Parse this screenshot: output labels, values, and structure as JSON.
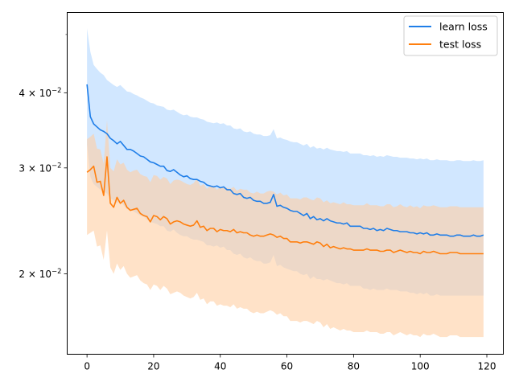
{
  "chart_data": {
    "type": "line",
    "title": "",
    "xlabel": "",
    "ylabel": "",
    "yscale": "log",
    "xlim": [
      -5.95,
      124.95
    ],
    "ylim": [
      0.0147,
      0.0544
    ],
    "grid": false,
    "legend_position": "top-right",
    "x_ticks": [
      0,
      20,
      40,
      60,
      80,
      100,
      120
    ],
    "x_tick_labels": [
      "0",
      "20",
      "40",
      "60",
      "80",
      "100",
      "120"
    ],
    "y_ticks": [
      0.02,
      0.03,
      0.04
    ],
    "y_tick_labels": [
      {
        "mantissa": "2",
        "base": "10",
        "exp": "−2"
      },
      {
        "mantissa": "3",
        "base": "10",
        "exp": "−2"
      },
      {
        "mantissa": "4",
        "base": "10",
        "exp": "−2"
      }
    ],
    "y_minor_ticks": [
      0.05
    ],
    "x_start": 0,
    "x_step": 1,
    "series": [
      {
        "name": "learn loss",
        "color": "#1f7ee8",
        "band_color": "#b3d7ff",
        "mean": [
          0.0413,
          0.0365,
          0.0355,
          0.0351,
          0.0347,
          0.0345,
          0.0342,
          0.0336,
          0.0333,
          0.0329,
          0.0332,
          0.0327,
          0.0322,
          0.0322,
          0.032,
          0.0317,
          0.0314,
          0.0313,
          0.031,
          0.0307,
          0.0306,
          0.0304,
          0.0302,
          0.0302,
          0.0297,
          0.0296,
          0.0298,
          0.0295,
          0.0292,
          0.029,
          0.0291,
          0.0288,
          0.0287,
          0.0287,
          0.0285,
          0.0284,
          0.0281,
          0.028,
          0.0279,
          0.028,
          0.0278,
          0.0279,
          0.0276,
          0.0276,
          0.0272,
          0.0271,
          0.0272,
          0.0268,
          0.0267,
          0.0268,
          0.0265,
          0.0264,
          0.0264,
          0.0262,
          0.0262,
          0.0263,
          0.0271,
          0.0259,
          0.026,
          0.0258,
          0.0257,
          0.0255,
          0.0254,
          0.0254,
          0.0252,
          0.025,
          0.0252,
          0.0247,
          0.0249,
          0.0246,
          0.0247,
          0.0245,
          0.0247,
          0.0245,
          0.0244,
          0.0243,
          0.0243,
          0.0242,
          0.0243,
          0.024,
          0.024,
          0.024,
          0.024,
          0.0238,
          0.0238,
          0.0237,
          0.0238,
          0.0236,
          0.0237,
          0.0236,
          0.0238,
          0.0237,
          0.0236,
          0.0236,
          0.0235,
          0.0235,
          0.0235,
          0.0234,
          0.0234,
          0.0233,
          0.0234,
          0.0233,
          0.0234,
          0.0232,
          0.0232,
          0.0233,
          0.0232,
          0.0232,
          0.0232,
          0.0231,
          0.0231,
          0.0232,
          0.0232,
          0.0231,
          0.0231,
          0.0231,
          0.0232,
          0.0231,
          0.0231,
          0.0232
        ],
        "upper": [
          0.0512,
          0.0468,
          0.0445,
          0.0438,
          0.0432,
          0.0428,
          0.042,
          0.0416,
          0.0412,
          0.0409,
          0.0412,
          0.0407,
          0.0402,
          0.0401,
          0.0398,
          0.0396,
          0.0393,
          0.0391,
          0.0388,
          0.0385,
          0.0384,
          0.0381,
          0.038,
          0.0379,
          0.0375,
          0.0374,
          0.0375,
          0.0372,
          0.0369,
          0.0367,
          0.0368,
          0.0365,
          0.0364,
          0.0364,
          0.0362,
          0.0361,
          0.0358,
          0.0357,
          0.0356,
          0.0357,
          0.0355,
          0.0356,
          0.0353,
          0.0353,
          0.0349,
          0.0348,
          0.0349,
          0.0345,
          0.0344,
          0.0345,
          0.0342,
          0.0341,
          0.0341,
          0.0339,
          0.0339,
          0.034,
          0.0348,
          0.0336,
          0.0337,
          0.0335,
          0.0334,
          0.0332,
          0.0331,
          0.0331,
          0.0329,
          0.0327,
          0.0329,
          0.0324,
          0.0326,
          0.0323,
          0.0324,
          0.0322,
          0.0324,
          0.0322,
          0.0321,
          0.032,
          0.032,
          0.0319,
          0.032,
          0.0317,
          0.0317,
          0.0317,
          0.0317,
          0.0315,
          0.0315,
          0.0314,
          0.0315,
          0.0313,
          0.0314,
          0.0313,
          0.0315,
          0.0314,
          0.0313,
          0.0313,
          0.0312,
          0.0312,
          0.0312,
          0.0311,
          0.0311,
          0.031,
          0.0311,
          0.031,
          0.0311,
          0.0309,
          0.0309,
          0.031,
          0.0309,
          0.0309,
          0.0309,
          0.0308,
          0.0308,
          0.0309,
          0.0309,
          0.0308,
          0.0308,
          0.0308,
          0.0309,
          0.0308,
          0.0308,
          0.0309
        ],
        "lower": [
          0.0328,
          0.029,
          0.0282,
          0.0279,
          0.0276,
          0.0274,
          0.0272,
          0.0267,
          0.0265,
          0.0262,
          0.0264,
          0.026,
          0.0256,
          0.0256,
          0.0254,
          0.0252,
          0.025,
          0.0249,
          0.0246,
          0.0244,
          0.0243,
          0.0242,
          0.024,
          0.024,
          0.0236,
          0.0235,
          0.0237,
          0.0234,
          0.0232,
          0.0231,
          0.0231,
          0.0229,
          0.0228,
          0.0228,
          0.0227,
          0.0226,
          0.0223,
          0.0223,
          0.0222,
          0.0223,
          0.0221,
          0.0222,
          0.0219,
          0.0219,
          0.0216,
          0.0215,
          0.0216,
          0.0213,
          0.0212,
          0.0213,
          0.0211,
          0.021,
          0.021,
          0.0208,
          0.0208,
          0.0209,
          0.0215,
          0.0206,
          0.0207,
          0.0205,
          0.0204,
          0.0203,
          0.0202,
          0.0202,
          0.02,
          0.0199,
          0.02,
          0.0196,
          0.0198,
          0.0196,
          0.0196,
          0.0195,
          0.0196,
          0.0195,
          0.0194,
          0.0193,
          0.0193,
          0.0192,
          0.0193,
          0.0191,
          0.0191,
          0.0191,
          0.0191,
          0.0189,
          0.0189,
          0.0188,
          0.0189,
          0.0188,
          0.0188,
          0.0188,
          0.0189,
          0.0188,
          0.0188,
          0.0188,
          0.0187,
          0.0187,
          0.0187,
          0.0186,
          0.0186,
          0.0185,
          0.0186,
          0.0185,
          0.0186,
          0.0184,
          0.0184,
          0.0185,
          0.0184,
          0.0184,
          0.0184,
          0.0184,
          0.0184,
          0.0184,
          0.0184,
          0.0184,
          0.0184,
          0.0184,
          0.0184,
          0.0184,
          0.0184,
          0.0184
        ]
      },
      {
        "name": "test loss",
        "color": "#ff7f0e",
        "band_color": "#ffcfa3",
        "mean": [
          0.0295,
          0.0298,
          0.0302,
          0.0284,
          0.0285,
          0.027,
          0.0313,
          0.0262,
          0.0258,
          0.0268,
          0.0262,
          0.0265,
          0.0258,
          0.0255,
          0.0256,
          0.0257,
          0.0252,
          0.025,
          0.0249,
          0.0244,
          0.025,
          0.0249,
          0.0246,
          0.0249,
          0.0247,
          0.0242,
          0.0244,
          0.0245,
          0.0244,
          0.0242,
          0.0241,
          0.024,
          0.0241,
          0.0245,
          0.0239,
          0.024,
          0.0236,
          0.0238,
          0.0238,
          0.0235,
          0.0237,
          0.0236,
          0.0236,
          0.0235,
          0.0237,
          0.0234,
          0.0235,
          0.0234,
          0.0234,
          0.0232,
          0.0231,
          0.0232,
          0.0231,
          0.0231,
          0.0232,
          0.0233,
          0.0232,
          0.023,
          0.0231,
          0.0229,
          0.0229,
          0.0226,
          0.0226,
          0.0226,
          0.0225,
          0.0226,
          0.0226,
          0.0225,
          0.0224,
          0.0226,
          0.0225,
          0.0222,
          0.0224,
          0.0221,
          0.0222,
          0.0221,
          0.022,
          0.0221,
          0.022,
          0.022,
          0.0219,
          0.0219,
          0.0219,
          0.0219,
          0.022,
          0.0219,
          0.0219,
          0.0219,
          0.0218,
          0.0218,
          0.0219,
          0.0219,
          0.0217,
          0.0218,
          0.0219,
          0.0218,
          0.0217,
          0.0218,
          0.0217,
          0.0217,
          0.0216,
          0.0218,
          0.0217,
          0.0217,
          0.0218,
          0.0217,
          0.0216,
          0.0216,
          0.0216,
          0.0217,
          0.0217,
          0.0217,
          0.0216,
          0.0216,
          0.0216,
          0.0216,
          0.0216,
          0.0216,
          0.0216,
          0.0216
        ],
        "upper": [
          0.0335,
          0.0338,
          0.0342,
          0.0323,
          0.0322,
          0.0305,
          0.036,
          0.03,
          0.0296,
          0.031,
          0.0304,
          0.0306,
          0.0298,
          0.0295,
          0.0297,
          0.0298,
          0.0293,
          0.0291,
          0.029,
          0.0284,
          0.0292,
          0.0291,
          0.0287,
          0.029,
          0.0288,
          0.0282,
          0.0286,
          0.0287,
          0.0286,
          0.0284,
          0.0282,
          0.0281,
          0.0283,
          0.0288,
          0.028,
          0.0282,
          0.0277,
          0.028,
          0.028,
          0.0276,
          0.0279,
          0.0278,
          0.0278,
          0.0277,
          0.0279,
          0.0275,
          0.0277,
          0.0276,
          0.0276,
          0.0273,
          0.0272,
          0.0274,
          0.0272,
          0.0272,
          0.0274,
          0.0275,
          0.0274,
          0.0271,
          0.0273,
          0.027,
          0.0271,
          0.0267,
          0.0267,
          0.0267,
          0.0266,
          0.0268,
          0.0268,
          0.0266,
          0.0265,
          0.0268,
          0.0267,
          0.0263,
          0.0265,
          0.0262,
          0.0263,
          0.0262,
          0.0261,
          0.0263,
          0.0261,
          0.0261,
          0.026,
          0.026,
          0.026,
          0.026,
          0.0262,
          0.026,
          0.026,
          0.026,
          0.0259,
          0.0259,
          0.0261,
          0.0261,
          0.0258,
          0.0259,
          0.0261,
          0.0259,
          0.0258,
          0.026,
          0.0258,
          0.0259,
          0.0257,
          0.026,
          0.0259,
          0.0259,
          0.026,
          0.0259,
          0.0258,
          0.0258,
          0.0258,
          0.0259,
          0.0259,
          0.0259,
          0.0258,
          0.0258,
          0.0258,
          0.0258,
          0.0258,
          0.0258,
          0.0258,
          0.0258
        ],
        "lower": [
          0.0232,
          0.0234,
          0.0236,
          0.0222,
          0.0223,
          0.0211,
          0.0236,
          0.0205,
          0.02,
          0.0208,
          0.0203,
          0.0206,
          0.02,
          0.0197,
          0.0198,
          0.0199,
          0.0195,
          0.0193,
          0.0192,
          0.0188,
          0.0192,
          0.0191,
          0.0188,
          0.0191,
          0.0189,
          0.0185,
          0.0186,
          0.0187,
          0.0186,
          0.0184,
          0.0183,
          0.0182,
          0.0183,
          0.0186,
          0.0181,
          0.0182,
          0.0178,
          0.018,
          0.018,
          0.0177,
          0.0178,
          0.0177,
          0.0177,
          0.0176,
          0.0178,
          0.0175,
          0.0176,
          0.0175,
          0.0175,
          0.0173,
          0.0172,
          0.0173,
          0.0172,
          0.0172,
          0.0173,
          0.0174,
          0.0173,
          0.0171,
          0.0172,
          0.017,
          0.017,
          0.0167,
          0.0167,
          0.0167,
          0.0166,
          0.0167,
          0.0167,
          0.0166,
          0.0165,
          0.0167,
          0.0166,
          0.0163,
          0.0165,
          0.0162,
          0.0163,
          0.0162,
          0.0161,
          0.0162,
          0.0161,
          0.0161,
          0.016,
          0.016,
          0.016,
          0.016,
          0.0161,
          0.016,
          0.016,
          0.016,
          0.0159,
          0.0159,
          0.016,
          0.016,
          0.0158,
          0.0159,
          0.016,
          0.0159,
          0.0158,
          0.0159,
          0.0158,
          0.0158,
          0.0157,
          0.0159,
          0.0158,
          0.0158,
          0.0159,
          0.0158,
          0.0157,
          0.0157,
          0.0157,
          0.0158,
          0.0158,
          0.0158,
          0.0157,
          0.0157,
          0.0157,
          0.0157,
          0.0157,
          0.0157,
          0.0157,
          0.0157
        ]
      }
    ]
  }
}
